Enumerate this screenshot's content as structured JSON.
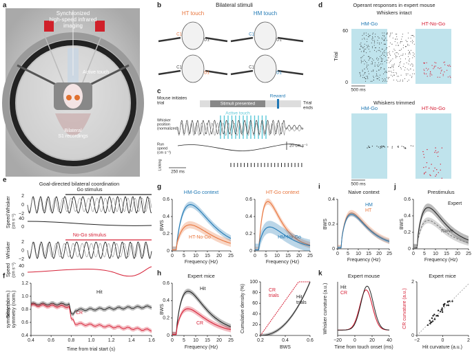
{
  "a": {
    "label": "a",
    "title_lines": [
      "Synchronized",
      "high-speed infrared",
      "imaging"
    ],
    "active": "Active touch",
    "recording_lines": [
      "Bilateral",
      "S1 recordings"
    ]
  },
  "b": {
    "label": "b",
    "title": "Bilateral stimuli",
    "ht": "HT touch",
    "hm": "HM touch",
    "c1": "C1",
    "d1": "D1"
  },
  "c": {
    "label": "c",
    "start_lines": [
      "Mouse initiates",
      "trial"
    ],
    "stimuli": "Stimuli presented",
    "reward": "Reward",
    "end_lines": [
      "Trial",
      "ends"
    ],
    "active": "Active touch",
    "whisker_lines": [
      "Whisker",
      "position",
      "(normalized)"
    ],
    "run_lines": [
      "Run",
      "speed",
      "(cm s⁻¹)"
    ],
    "licking": "Licking",
    "time_scale": "250 ms",
    "speed_scale": "20 cm s⁻¹"
  },
  "d": {
    "label": "d",
    "title": "Operant responses in expert mouse",
    "intact": "Whiskers intact",
    "trimmed": "Whiskers trimmed",
    "go": "HM-Go",
    "nogo": "HT-No-Go",
    "ylabel": "Trial",
    "yticks": [
      "60",
      "0"
    ],
    "scale": "500 ms"
  },
  "e": {
    "label": "e",
    "title": "Goal-directed bilateral coordination",
    "go": "Go stimulus",
    "nogo": "No-Go stimulus",
    "whisker": "Whisker",
    "speed": "Speed",
    "speed_unit": "(cm s⁻¹)",
    "whisker_ticks": [
      "2",
      "0",
      "−2"
    ],
    "speed_ticks": [
      "40",
      "0"
    ]
  },
  "f": {
    "label": "f",
    "ylabel_lines": [
      "Bilateral",
      "symmetry (norm.)"
    ],
    "xlabel": "Time from trial start (s)",
    "hit": "Hit",
    "cr": "CR",
    "yticks": [
      "1.2",
      "1.0",
      "0.8",
      "0.6",
      "0.4"
    ],
    "xticks": [
      "0.4",
      "0.6",
      "0.8",
      "1.0",
      "1.2",
      "1.4",
      "1.6"
    ]
  },
  "g": {
    "label": "g",
    "hm_context": "HM-Go context",
    "ht_nogo": "HT-No-Go",
    "ht_context": "HT-Go context",
    "hm_nogo": "HM-No-Go",
    "ylabel": "BWS",
    "xlabel": "Frequency (Hz)",
    "yticks": [
      "0.6",
      "0.4",
      "0.2",
      "0"
    ],
    "xticks": [
      "0",
      "5",
      "10",
      "15",
      "20",
      "25"
    ]
  },
  "h": {
    "label": "h",
    "title": "Expert mice",
    "hit": "Hit",
    "cr": "CR",
    "ylabel": "BWS",
    "xlabel": "Frequency (Hz)",
    "yticks": [
      "0.6",
      "0.4",
      "0.2",
      "0"
    ],
    "xticks": [
      "0",
      "5",
      "10",
      "15",
      "20",
      "25"
    ],
    "cum_ylabel": "Cumulative density (%)",
    "cum_yticks": [
      "100",
      "80",
      "60",
      "40",
      "20",
      "0"
    ],
    "cum_xticks": [
      "0.2",
      "0.4",
      "0.6"
    ],
    "cum_xlabel": "BWS",
    "cr_lines": [
      "CR",
      "trials"
    ],
    "hit_lines": [
      "Hit",
      "trials"
    ]
  },
  "i": {
    "label": "i",
    "title": "Naive context",
    "hm": "HM",
    "ht": "HT",
    "ylabel": "BWS",
    "xlabel": "Frequency (Hz)",
    "yticks": [
      "0.4",
      "0.2",
      "0"
    ],
    "xticks": [
      "0",
      "5",
      "10",
      "15",
      "20",
      "25"
    ]
  },
  "j": {
    "label": "j",
    "title": "Prestimulus",
    "expert": "Expert",
    "naive": "Naive",
    "ylabel": "BWS",
    "xlabel": "Frequency (Hz)",
    "yticks": [
      "0.6",
      "0.4",
      "0.2",
      "0"
    ],
    "xticks": [
      "0",
      "5",
      "10",
      "15",
      "20",
      "25"
    ]
  },
  "k": {
    "label": "k",
    "title": "Expert mouse",
    "ylabel": "Whisker curvature (a.u.)",
    "hit": "Hit",
    "cr": "CR",
    "xlabel": "Time from touch onset (ms)",
    "xticks": [
      "−20",
      "0",
      "20",
      "40"
    ],
    "title2": "Expert mice",
    "ylabel2": "CR curvature (a.u.)",
    "xlabel2": "Hit curvature (a.u.)",
    "yticks2": [
      "2",
      "0"
    ],
    "xticks2": [
      "−2",
      "0",
      "2"
    ]
  }
}
